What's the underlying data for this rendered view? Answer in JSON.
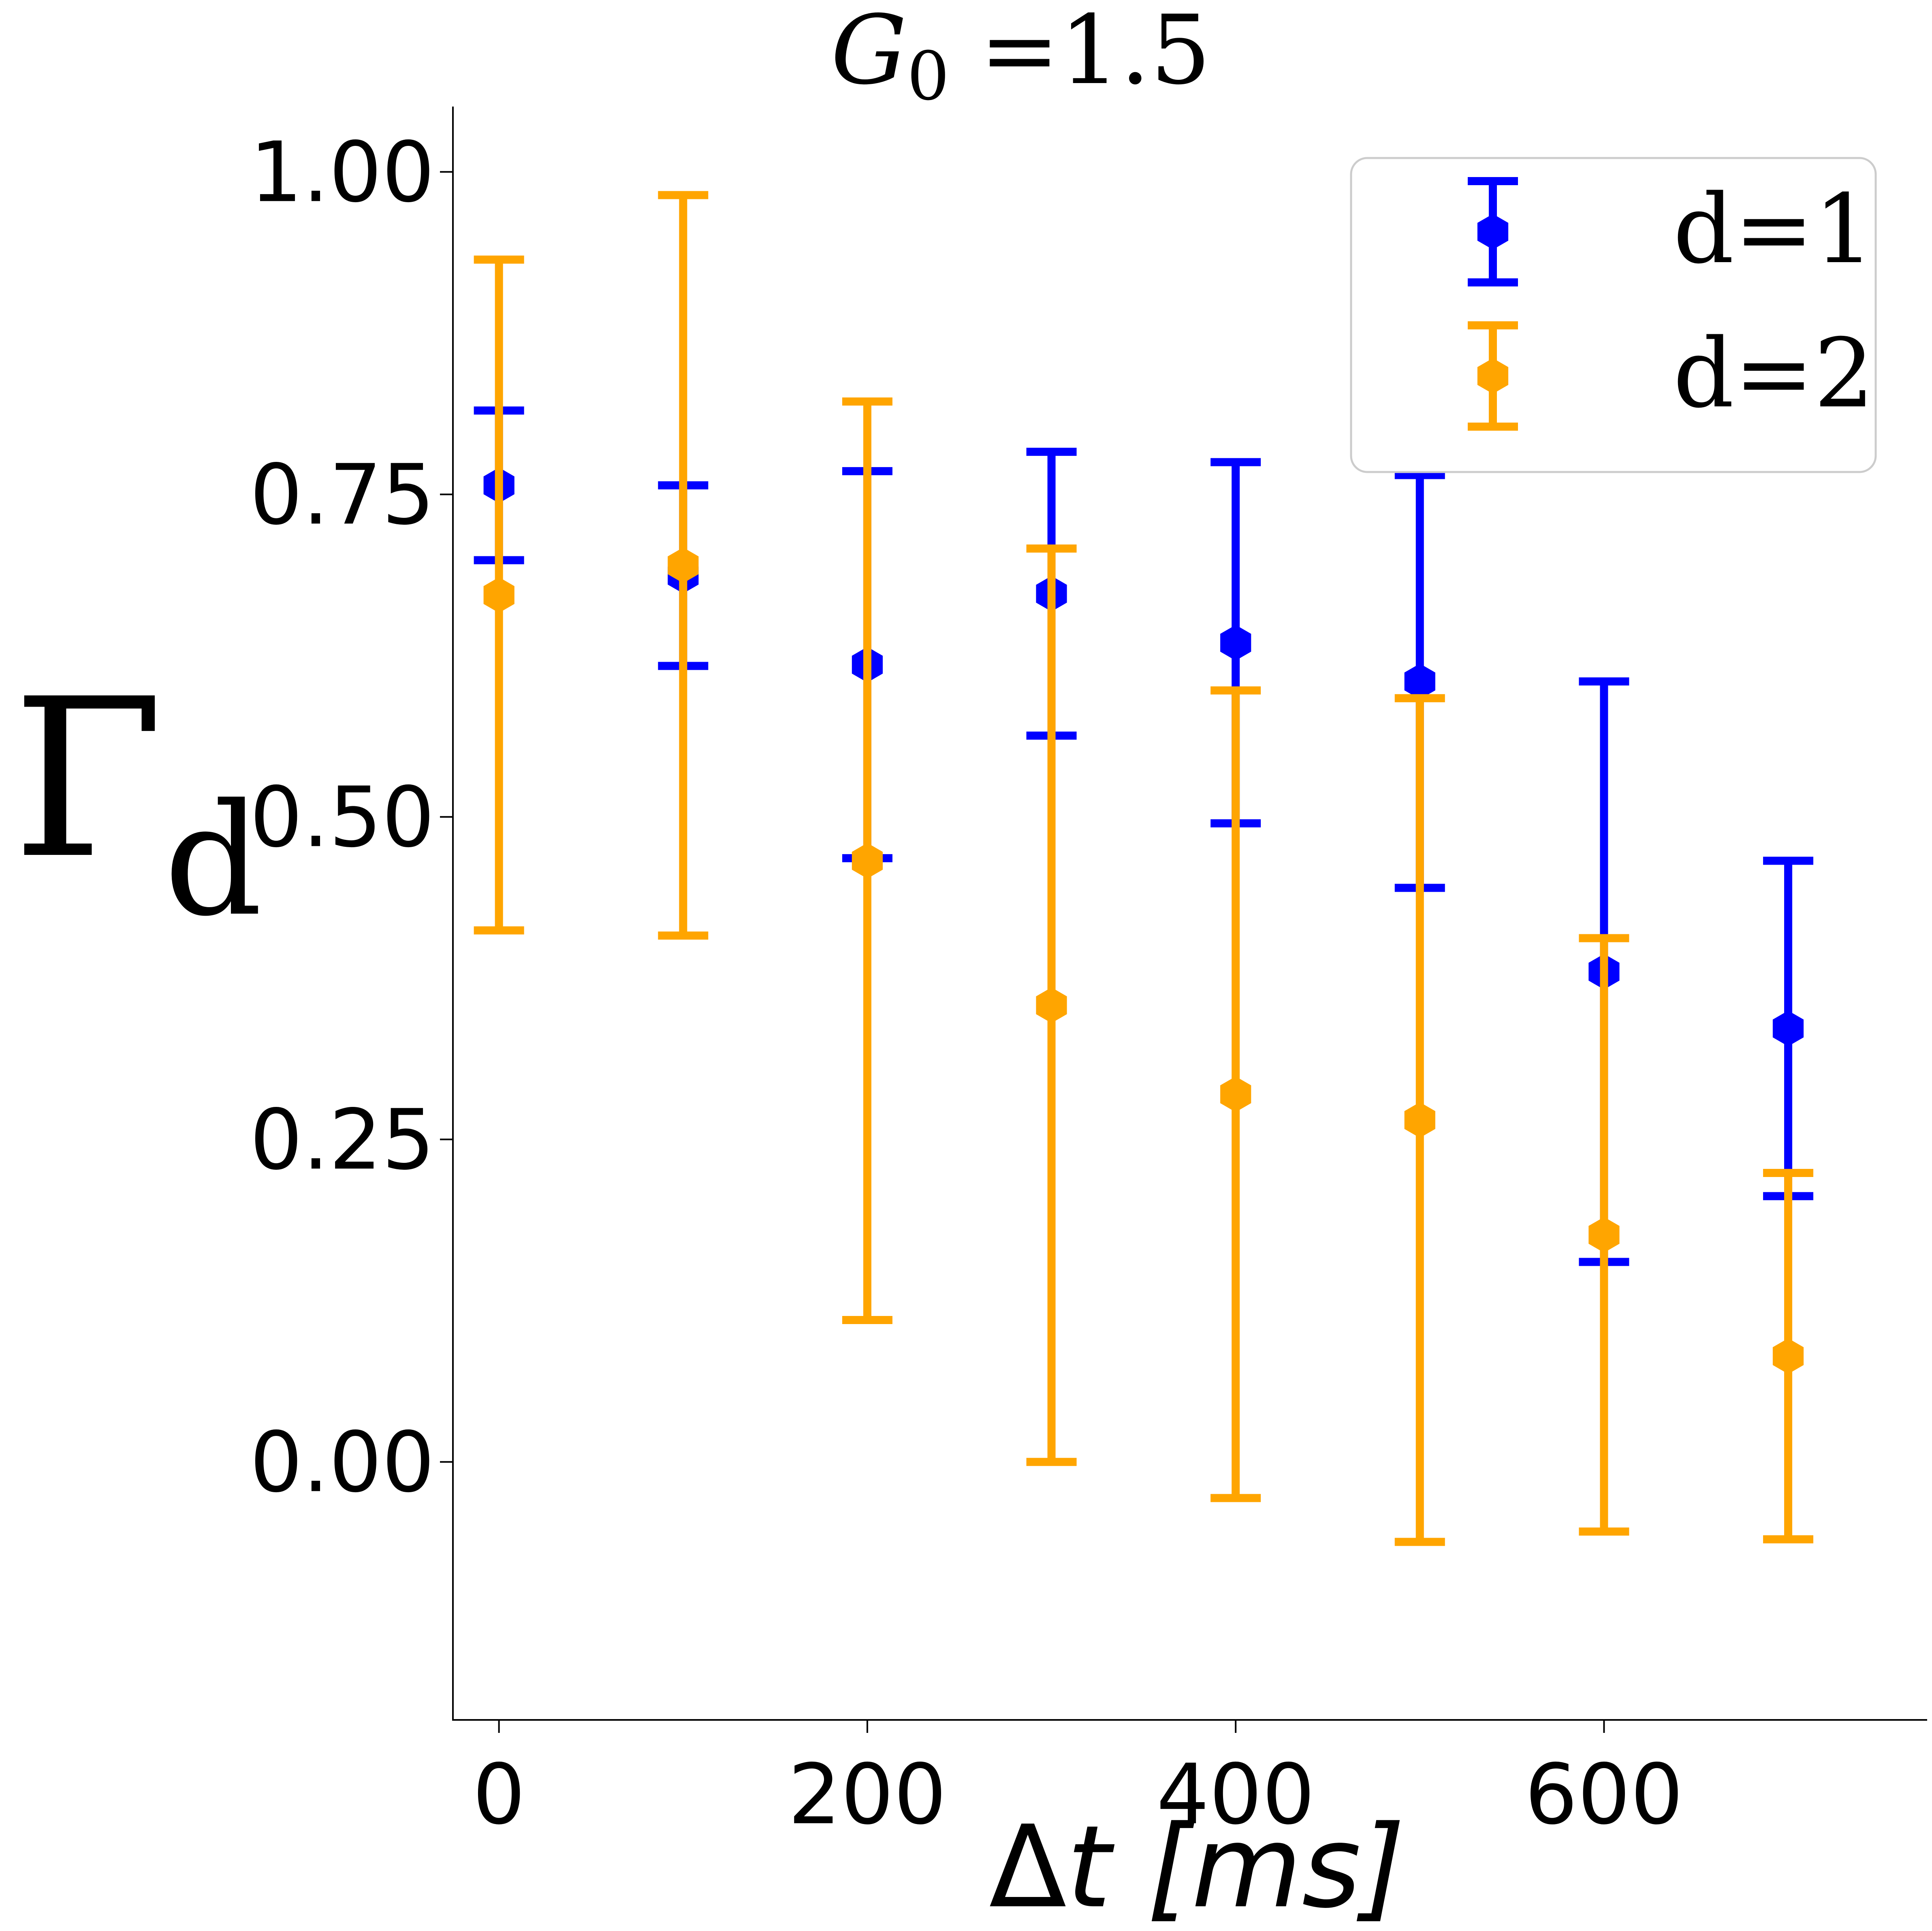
{
  "chart_data": {
    "type": "errorbar",
    "title": {
      "symbol": "G",
      "subscript": "0",
      "rest": " =1.5"
    },
    "xlabel": {
      "delta": "Δ",
      "var": "t",
      "unit": " [ms]"
    },
    "ylabel": {
      "symbol": "Γ",
      "subscript": "d"
    },
    "xlim": [
      -25,
      775
    ],
    "ylim": [
      -0.2,
      1.05
    ],
    "xticks": [
      0,
      200,
      400,
      600
    ],
    "xtick_labels": [
      "0",
      "200",
      "400",
      "600"
    ],
    "yticks": [
      0.0,
      0.25,
      0.5,
      0.75,
      1.0
    ],
    "ytick_labels": [
      "0.00",
      "0.25",
      "0.50",
      "0.75",
      "1.00"
    ],
    "grid": false,
    "legend_position": "top-right",
    "series": [
      {
        "name": "d=1",
        "color": "#0000ff",
        "x": [
          0,
          100,
          200,
          300,
          400,
          500,
          600,
          700
        ],
        "y": [
          0.757,
          0.687,
          0.618,
          0.673,
          0.635,
          0.605,
          0.38,
          0.336
        ],
        "yerr": [
          0.058,
          0.07,
          0.15,
          0.11,
          0.14,
          0.16,
          0.225,
          0.13
        ]
      },
      {
        "name": "d=2",
        "color": "#ffa500",
        "x": [
          0,
          100,
          200,
          300,
          400,
          500,
          600,
          700
        ],
        "y": [
          0.672,
          0.695,
          0.466,
          0.354,
          0.285,
          0.265,
          0.176,
          0.082
        ],
        "yerr": [
          0.26,
          0.287,
          0.356,
          0.354,
          0.313,
          0.327,
          0.23,
          0.142
        ]
      }
    ]
  }
}
